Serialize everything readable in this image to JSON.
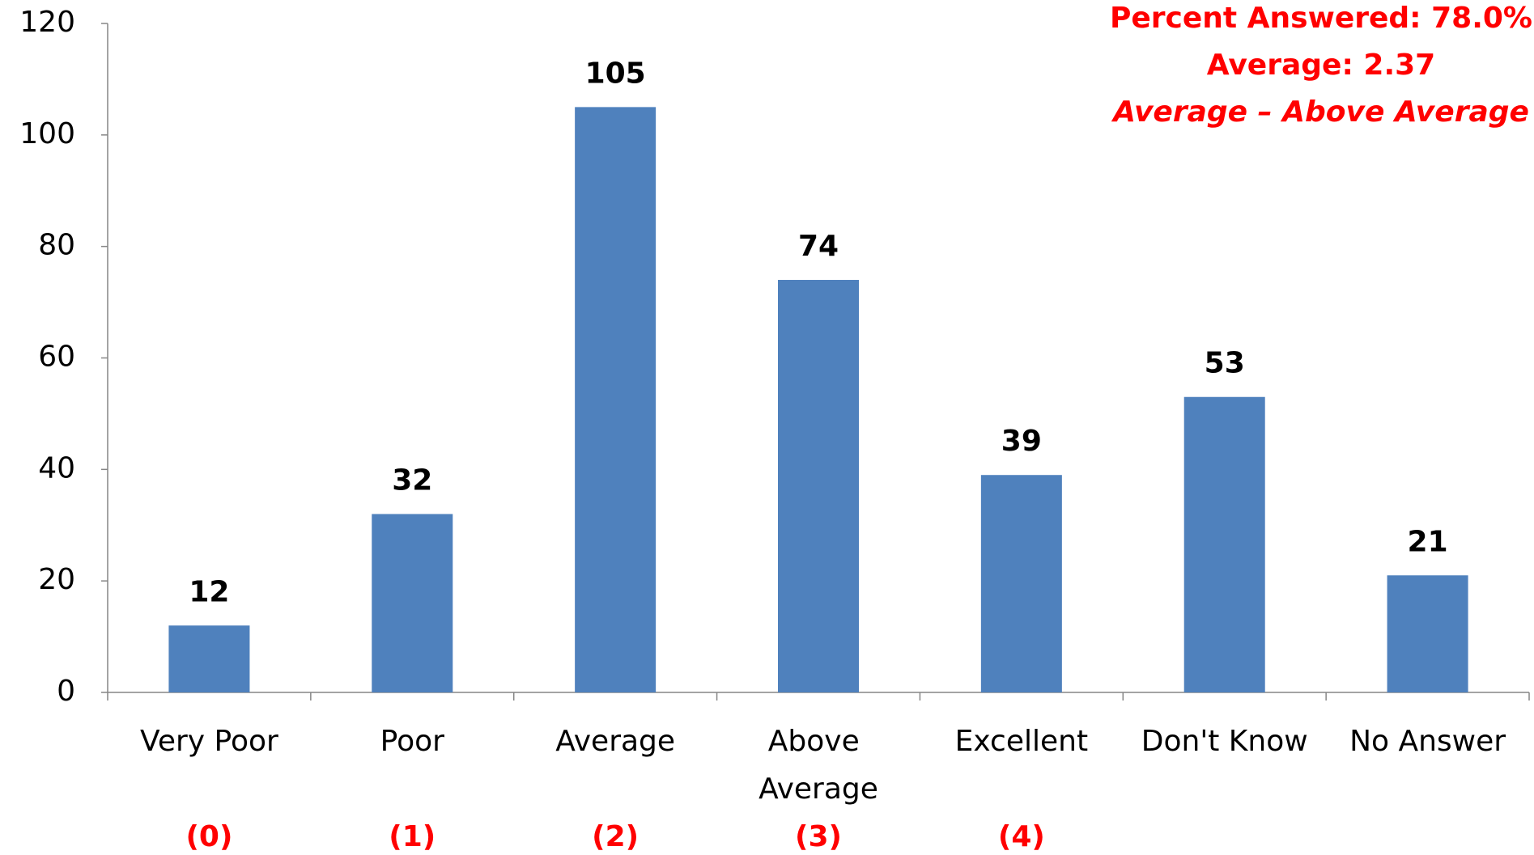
{
  "chart_data": {
    "type": "bar",
    "categories": [
      "Very Poor",
      "Poor",
      "Average",
      "Above Average",
      "Excellent",
      "Don't Know",
      "No Answer"
    ],
    "values": [
      12,
      32,
      105,
      74,
      39,
      53,
      21
    ],
    "score_labels": [
      "(0)",
      "(1)",
      "(2)",
      "(3)",
      "(4)",
      null,
      null
    ],
    "color": "#4f81bd",
    "ylim": [
      0,
      120
    ],
    "yticks": [
      0,
      20,
      40,
      60,
      80,
      100,
      120
    ],
    "annotations": [
      "Percent Answered: 78.0%",
      "Average: 2.37",
      "Average – Above Average"
    ],
    "annotation_color": "#ff0000"
  }
}
